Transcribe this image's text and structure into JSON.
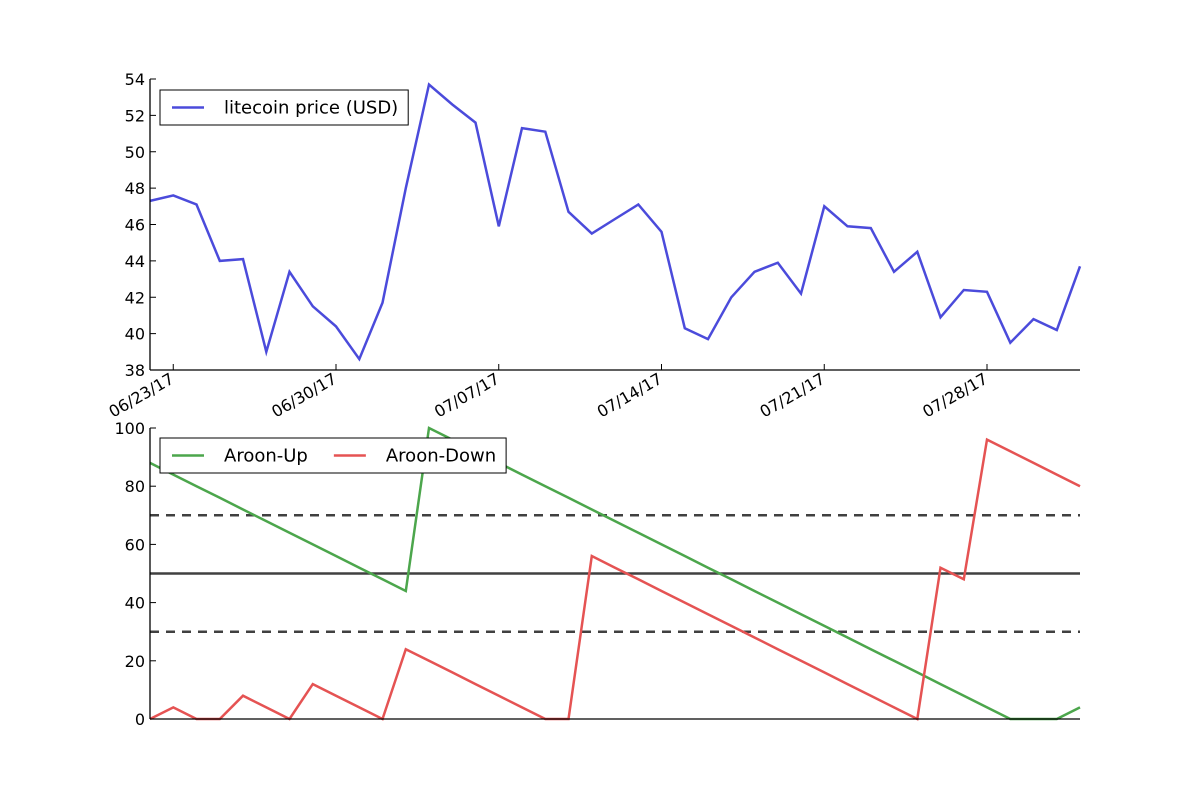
{
  "chart_data": [
    {
      "type": "line",
      "title": "",
      "xlabel": "",
      "ylabel": "",
      "x": [
        "06/22/17",
        "06/23/17",
        "06/24/17",
        "06/25/17",
        "06/26/17",
        "06/27/17",
        "06/28/17",
        "06/29/17",
        "06/30/17",
        "07/01/17",
        "07/02/17",
        "07/03/17",
        "07/04/17",
        "07/05/17",
        "07/06/17",
        "07/07/17",
        "07/08/17",
        "07/09/17",
        "07/10/17",
        "07/11/17",
        "07/12/17",
        "07/13/17",
        "07/14/17",
        "07/15/17",
        "07/16/17",
        "07/17/17",
        "07/18/17",
        "07/19/17",
        "07/20/17",
        "07/21/17",
        "07/22/17",
        "07/23/17",
        "07/24/17",
        "07/25/17",
        "07/26/17",
        "07/27/17",
        "07/28/17",
        "07/29/17",
        "07/30/17",
        "07/31/17",
        "08/01/17"
      ],
      "x_tick_labels": [
        "06/23/17",
        "06/30/17",
        "07/07/17",
        "07/14/17",
        "07/21/17",
        "07/28/17"
      ],
      "ylim": [
        38,
        54
      ],
      "y_ticks": [
        38,
        40,
        42,
        44,
        46,
        48,
        50,
        52,
        54
      ],
      "legend": "top-left",
      "grid": false,
      "series": [
        {
          "name": "litecoin price (USD)",
          "color": "#4b4bdb",
          "values": [
            47.3,
            47.6,
            47.1,
            44.0,
            44.1,
            39.0,
            43.4,
            41.5,
            40.4,
            38.6,
            41.7,
            48.0,
            53.7,
            52.6,
            51.6,
            45.9,
            51.3,
            51.1,
            46.7,
            45.5,
            46.3,
            47.1,
            45.6,
            40.3,
            39.7,
            42.0,
            43.4,
            43.9,
            42.2,
            47.0,
            45.9,
            45.8,
            43.4,
            44.5,
            40.9,
            42.4,
            42.3,
            39.5,
            40.8,
            40.2,
            43.7
          ]
        }
      ]
    },
    {
      "type": "line",
      "title": "",
      "xlabel": "",
      "ylabel": "",
      "ylim": [
        0,
        100
      ],
      "y_ticks": [
        0,
        20,
        40,
        60,
        80,
        100
      ],
      "legend": "top-left",
      "grid": false,
      "reference_lines": [
        {
          "y": 70,
          "style": "dashed",
          "color": "#404040"
        },
        {
          "y": 50,
          "style": "solid",
          "color": "#404040"
        },
        {
          "y": 30,
          "style": "dashed",
          "color": "#404040"
        }
      ],
      "series": [
        {
          "name": "Aroon-Up",
          "color": "#4ca64c",
          "values": [
            88,
            84,
            80,
            76,
            72,
            68,
            64,
            60,
            56,
            52,
            48,
            44,
            100,
            96,
            92,
            88,
            84,
            80,
            76,
            72,
            68,
            64,
            60,
            56,
            52,
            48,
            44,
            40,
            36,
            32,
            28,
            24,
            20,
            16,
            12,
            8,
            4,
            0,
            0,
            0,
            4
          ]
        },
        {
          "name": "Aroon-Down",
          "color": "#e55353",
          "values": [
            0,
            4,
            0,
            0,
            8,
            4,
            0,
            12,
            8,
            4,
            0,
            24,
            20,
            16,
            12,
            8,
            4,
            0,
            0,
            56,
            52,
            48,
            44,
            40,
            36,
            32,
            28,
            24,
            20,
            16,
            12,
            8,
            4,
            0,
            52,
            48,
            96,
            92,
            88,
            84,
            80
          ]
        }
      ]
    }
  ]
}
